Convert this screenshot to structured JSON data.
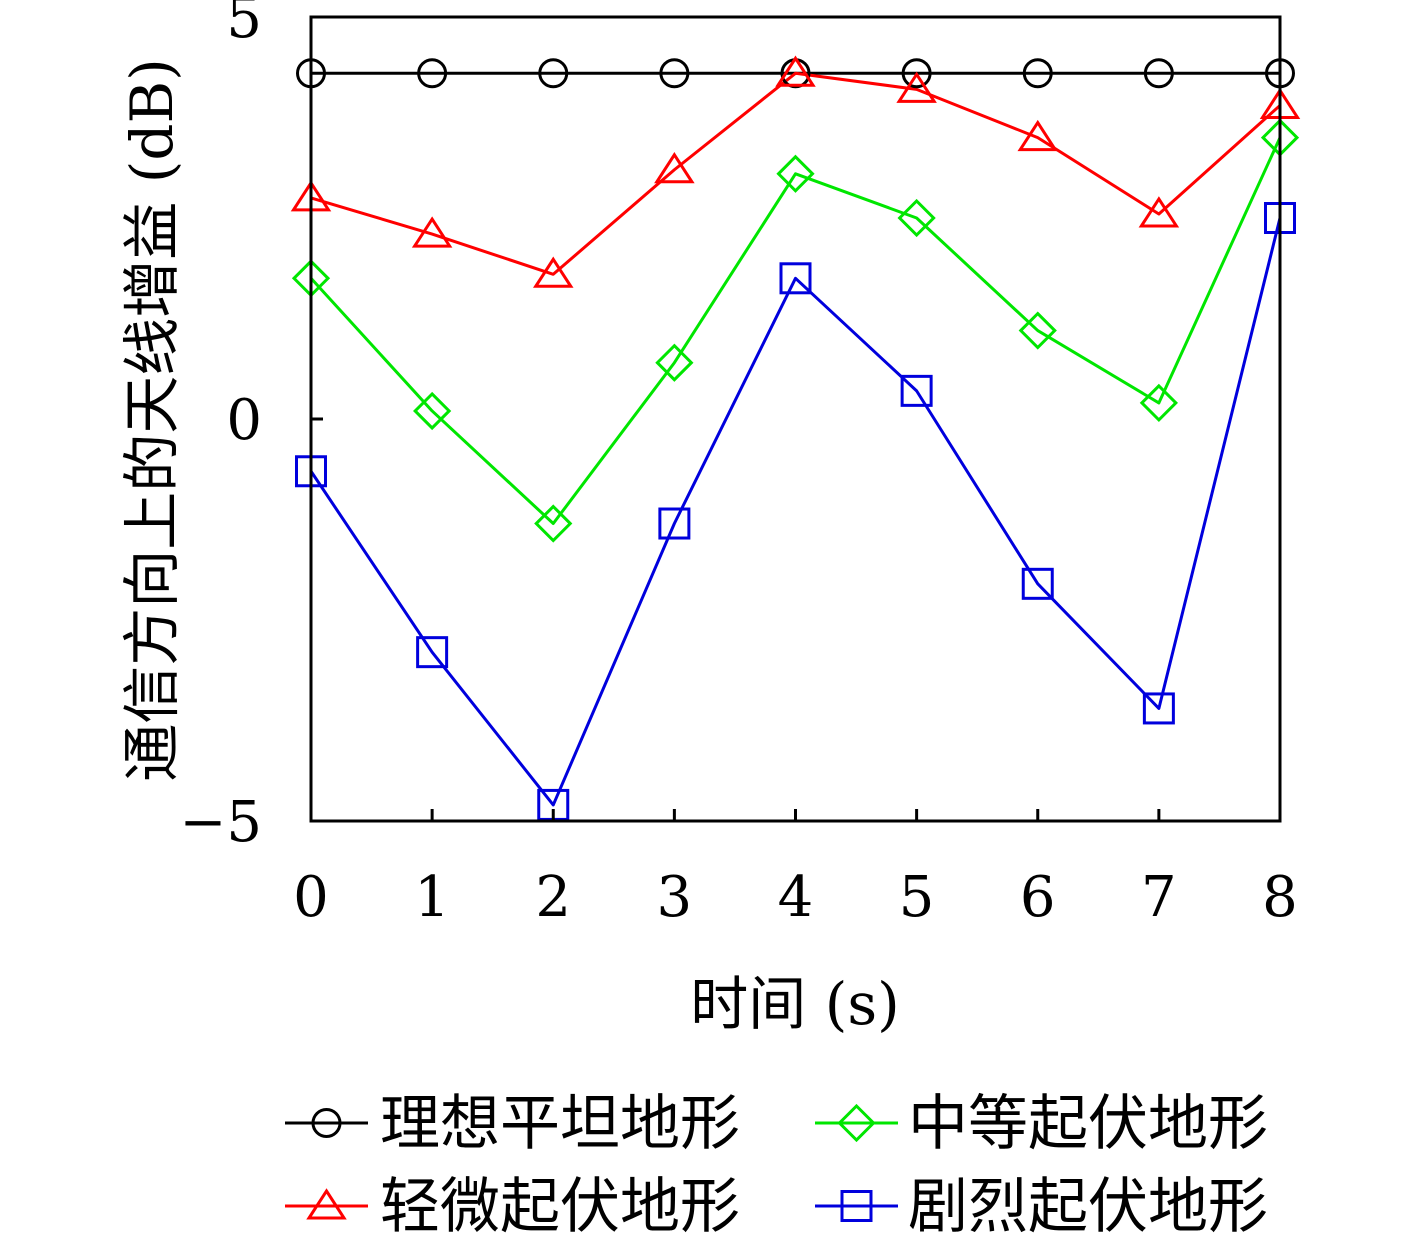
{
  "chart_data": {
    "type": "line",
    "title": "",
    "xlabel": "时间 (s)",
    "ylabel": "通信方向上的天线增益 (dB)",
    "x": [
      0,
      1,
      2,
      3,
      4,
      5,
      6,
      7,
      8
    ],
    "xlim": [
      0,
      8
    ],
    "ylim": [
      -5,
      5
    ],
    "x_ticks": [
      "0",
      "1",
      "2",
      "3",
      "4",
      "5",
      "6",
      "7",
      "8"
    ],
    "y_ticks": [
      {
        "value": -5,
        "label": "−5"
      },
      {
        "value": 0,
        "label": "0"
      },
      {
        "value": 5,
        "label": "5"
      }
    ],
    "grid": false,
    "legend_position": "bottom",
    "series": [
      {
        "name": "理想平坦地形",
        "color": "#000000",
        "marker": "circle",
        "values": [
          4.3,
          4.3,
          4.3,
          4.3,
          4.3,
          4.3,
          4.3,
          4.3,
          4.3
        ]
      },
      {
        "name": "轻微起伏地形",
        "color": "#ff0000",
        "marker": "triangle",
        "values": [
          2.75,
          2.3,
          1.8,
          3.1,
          4.3,
          4.1,
          3.5,
          2.55,
          3.9
        ]
      },
      {
        "name": "中等起伏地形",
        "color": "#00e600",
        "marker": "diamond",
        "values": [
          1.75,
          0.1,
          -1.3,
          0.7,
          3.05,
          2.5,
          1.1,
          0.2,
          3.5
        ]
      },
      {
        "name": "剧烈起伏地形",
        "color": "#0000dd",
        "marker": "square",
        "values": [
          -0.65,
          -2.9,
          -4.8,
          -1.3,
          1.75,
          0.35,
          -2.05,
          -3.6,
          2.5
        ]
      }
    ]
  }
}
